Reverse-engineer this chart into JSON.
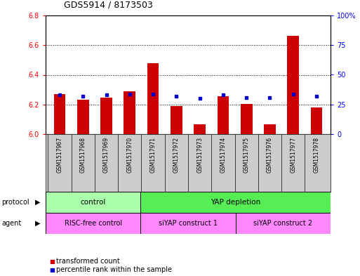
{
  "title": "GDS5914 / 8173503",
  "samples": [
    "GSM1517967",
    "GSM1517968",
    "GSM1517969",
    "GSM1517970",
    "GSM1517971",
    "GSM1517972",
    "GSM1517973",
    "GSM1517974",
    "GSM1517975",
    "GSM1517976",
    "GSM1517977",
    "GSM1517978"
  ],
  "transformed_count": [
    6.27,
    6.23,
    6.245,
    6.29,
    6.48,
    6.19,
    6.065,
    6.255,
    6.205,
    6.065,
    6.665,
    6.18
  ],
  "percentile_rank": [
    33,
    32,
    33,
    34,
    34,
    32,
    30,
    33,
    31,
    31,
    34,
    32
  ],
  "ylim_left": [
    6.0,
    6.8
  ],
  "ylim_right": [
    0,
    100
  ],
  "yticks_left": [
    6.0,
    6.2,
    6.4,
    6.6,
    6.8
  ],
  "yticks_right": [
    0,
    25,
    50,
    75,
    100
  ],
  "ytick_labels_right": [
    "0",
    "25",
    "50",
    "75",
    "100%"
  ],
  "bar_color": "#cc0000",
  "dot_color": "#0000cc",
  "bar_width": 0.5,
  "protocol_color_control": "#aaffaa",
  "protocol_color_yap": "#55ee55",
  "agent_color": "#ff88ff",
  "legend_red_label": "transformed count",
  "legend_blue_label": "percentile rank within the sample",
  "background_color": "#ffffff",
  "sample_bg_color": "#cccccc"
}
